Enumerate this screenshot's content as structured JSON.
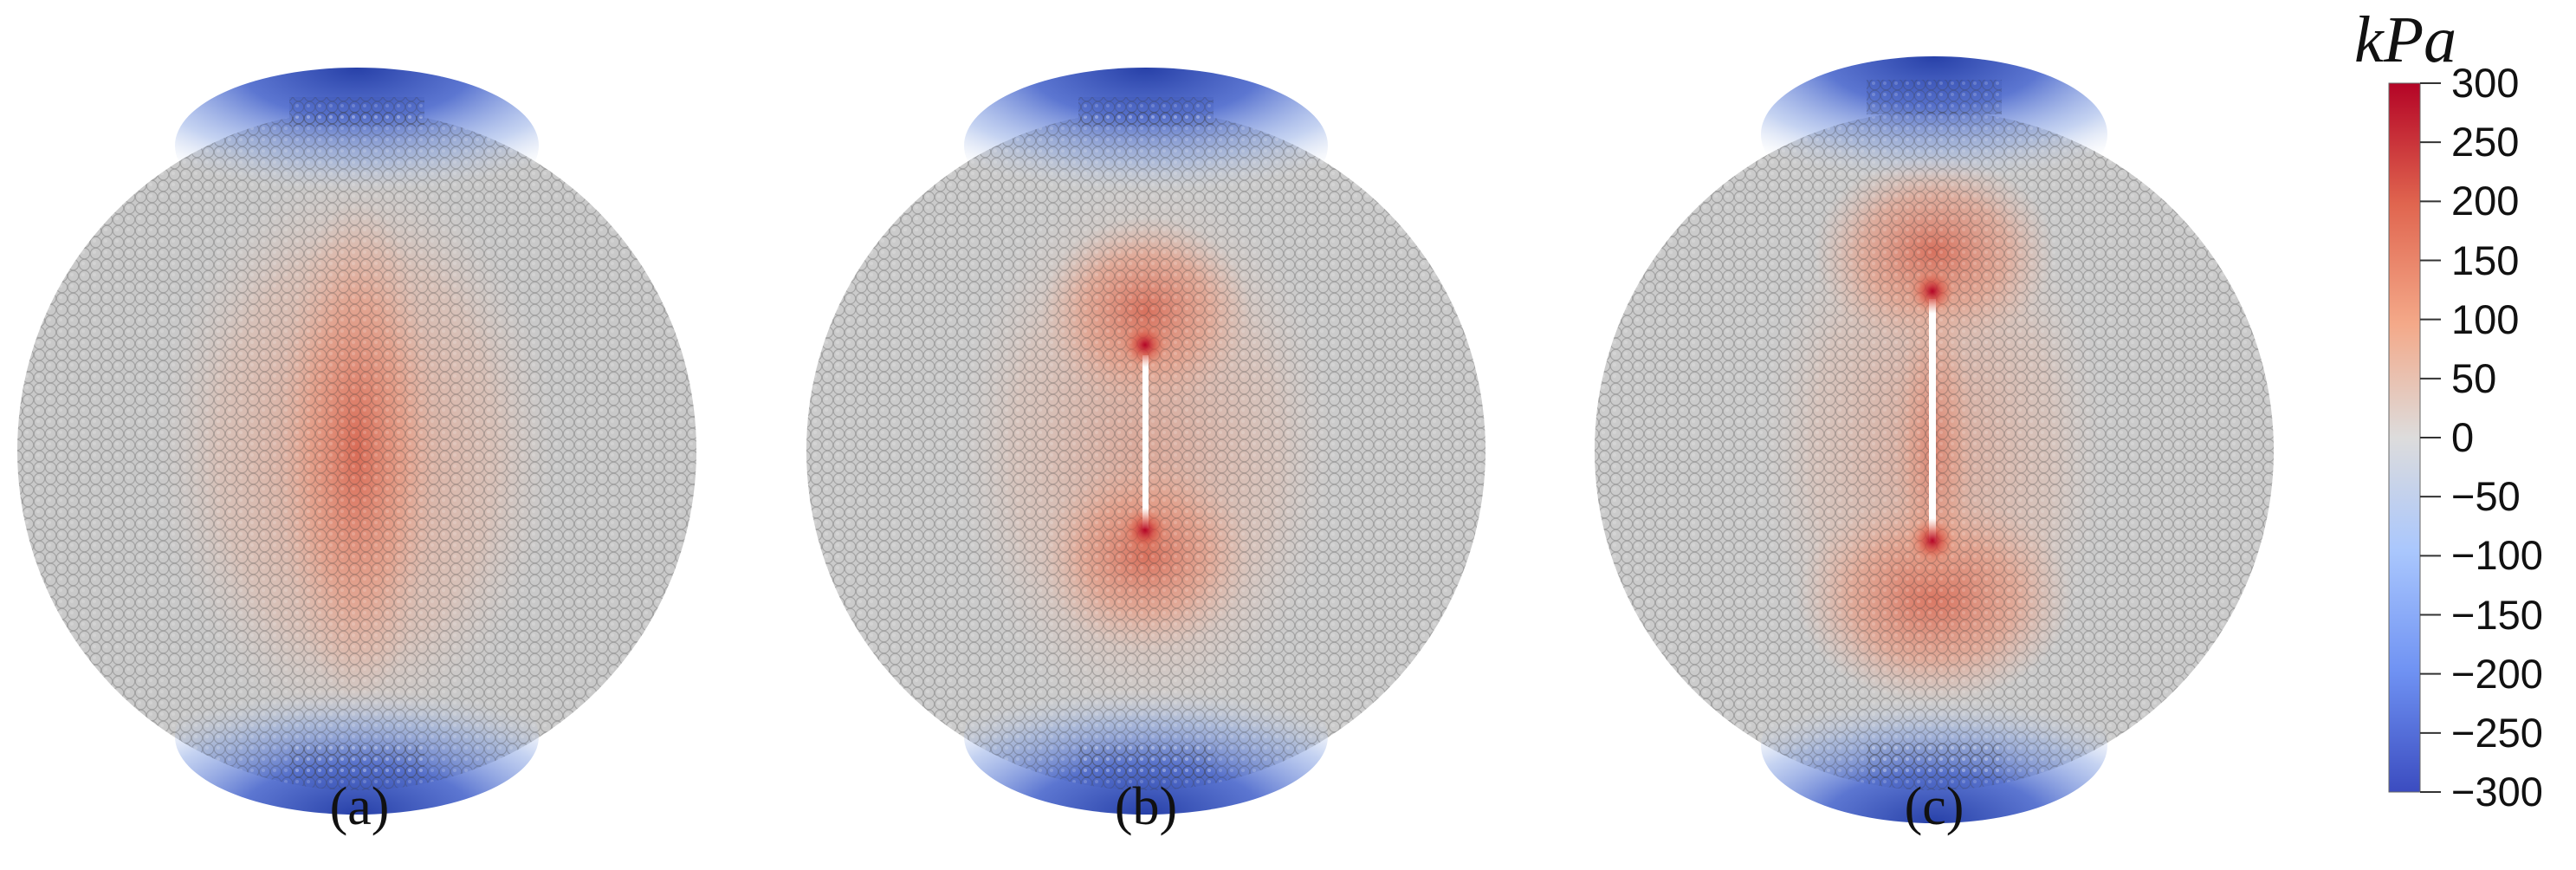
{
  "panels": [
    {
      "label": "(a)",
      "crack": "none"
    },
    {
      "label": "(b)",
      "crack": "short"
    },
    {
      "label": "(c)",
      "crack": "long"
    }
  ],
  "colorbar": {
    "unit": "kPa",
    "ticks": [
      "300",
      "250",
      "200",
      "150",
      "100",
      "50",
      "0",
      "−50",
      "−100",
      "−150",
      "−200",
      "−250",
      "−300"
    ],
    "max": 300,
    "min": -300,
    "colors": {
      "high": "#b40426",
      "mid": "#dcdcdc",
      "low": "#3b4cc0"
    }
  }
}
